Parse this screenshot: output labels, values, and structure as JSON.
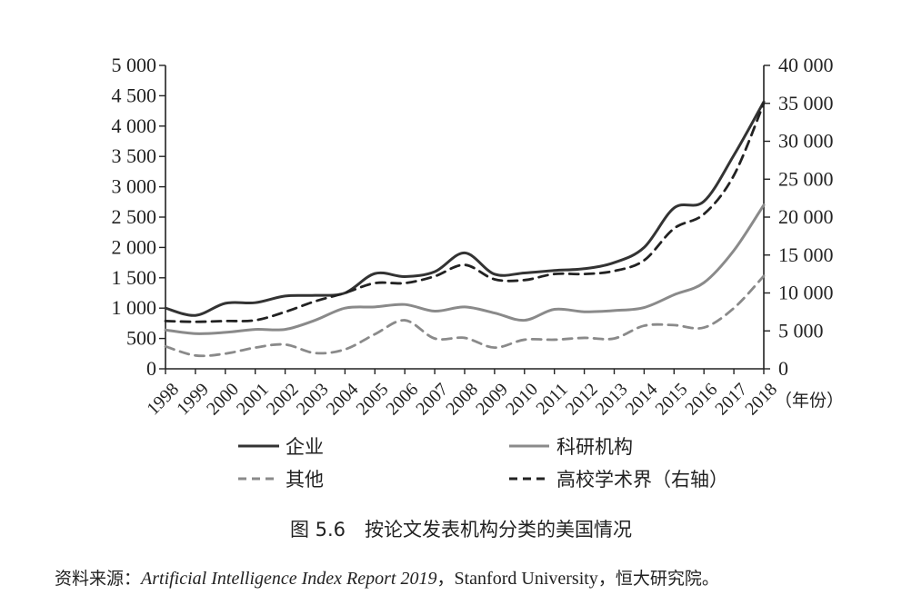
{
  "chart_data": {
    "type": "line",
    "x": [
      1998,
      1999,
      2000,
      2001,
      2002,
      2003,
      2004,
      2005,
      2006,
      2007,
      2008,
      2009,
      2010,
      2011,
      2012,
      2013,
      2014,
      2015,
      2016,
      2017,
      2018
    ],
    "x_tick_labels": [
      "1998",
      "1999",
      "2000",
      "2001",
      "2002",
      "2003",
      "2004",
      "2005",
      "2006",
      "2007",
      "2008",
      "2009",
      "2010",
      "2011",
      "2012",
      "2013",
      "2014",
      "2015",
      "2016",
      "2017",
      "2018"
    ],
    "x_unit_label": "（年份）",
    "y_left": {
      "range": [
        0,
        5000
      ],
      "tick_values": [
        0,
        500,
        1000,
        1500,
        2000,
        2500,
        3000,
        3500,
        4000,
        4500,
        5000
      ],
      "tick_labels": [
        "0",
        "500",
        "1 000",
        "1 500",
        "2 000",
        "2 500",
        "3 000",
        "3 500",
        "4 000",
        "4 500",
        "5 000"
      ]
    },
    "y_right": {
      "range": [
        0,
        40000
      ],
      "tick_values": [
        0,
        5000,
        10000,
        15000,
        20000,
        25000,
        30000,
        35000,
        40000
      ],
      "tick_labels": [
        "0",
        "5 000",
        "10 000",
        "15 000",
        "20 000",
        "25 000",
        "30 000",
        "35 000",
        "40 000"
      ]
    },
    "grid": false,
    "legend_position": "bottom",
    "series": [
      {
        "name": "企业",
        "axis": "left",
        "style": "solid",
        "color": "#333333",
        "values": [
          1000,
          880,
          1080,
          1090,
          1200,
          1210,
          1250,
          1570,
          1520,
          1600,
          1910,
          1560,
          1580,
          1620,
          1650,
          1750,
          2000,
          2650,
          2760,
          3520,
          4400
        ]
      },
      {
        "name": "科研机构",
        "axis": "left",
        "style": "solid",
        "color": "#8a8a8a",
        "values": [
          640,
          580,
          600,
          650,
          650,
          800,
          1000,
          1020,
          1060,
          950,
          1020,
          920,
          800,
          980,
          940,
          960,
          1010,
          1220,
          1420,
          1950,
          2700
        ]
      },
      {
        "name": "其他",
        "axis": "left",
        "style": "dashed",
        "color": "#8a8a8a",
        "values": [
          370,
          220,
          250,
          350,
          400,
          260,
          320,
          570,
          800,
          500,
          510,
          350,
          480,
          480,
          510,
          500,
          710,
          720,
          680,
          1000,
          1530
        ]
      },
      {
        "name": "高校学术界（右轴）",
        "axis": "right",
        "style": "dashed",
        "color": "#222222",
        "values": [
          6300,
          6200,
          6300,
          6400,
          7500,
          8900,
          10000,
          11300,
          11300,
          12200,
          13700,
          11800,
          11700,
          12500,
          12500,
          12900,
          14300,
          18500,
          20400,
          25500,
          35000
        ]
      }
    ]
  },
  "caption": "图 5.6　按论文发表机构分类的美国情况",
  "source": {
    "prefix": "资料来源：",
    "report": "Artificial Intelligence Index Report 2019",
    "sep1": "，",
    "org": "Stanford University",
    "sep2": "，",
    "suffix": "恒大研究院。"
  }
}
